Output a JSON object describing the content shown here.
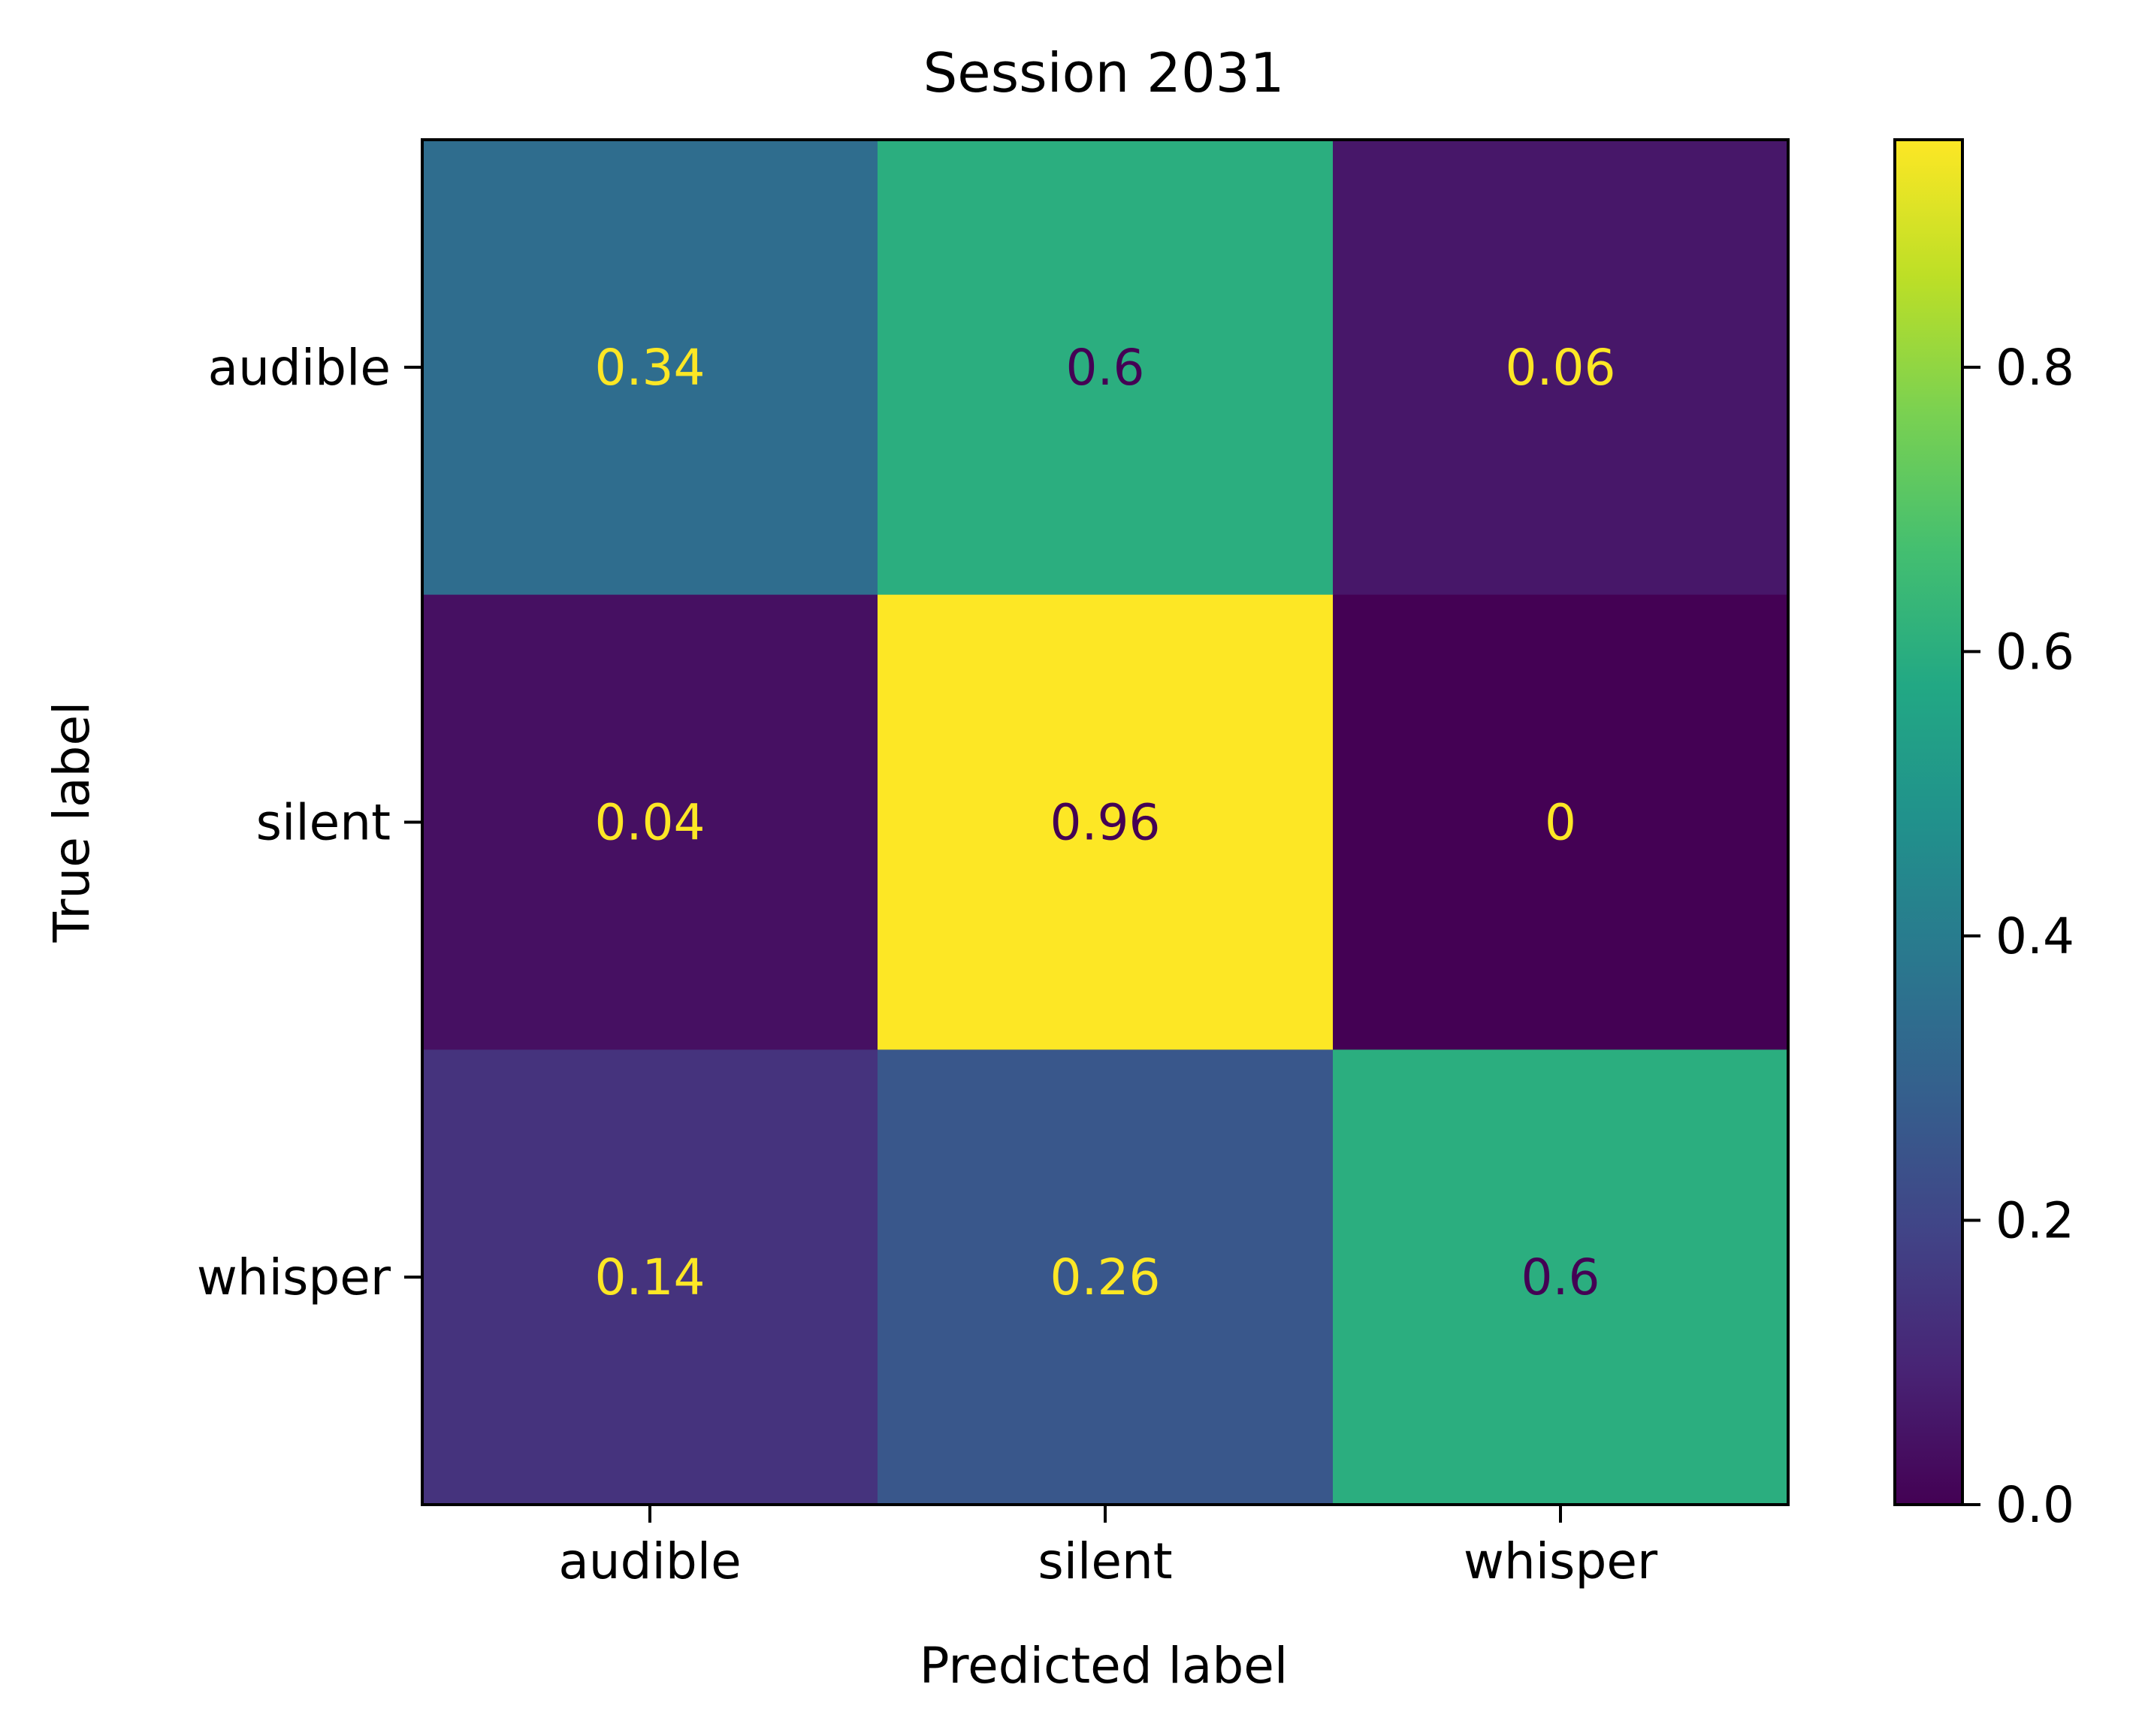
{
  "chart_data": {
    "type": "heatmap",
    "title": "Session 2031",
    "xlabel": "Predicted label",
    "ylabel": "True label",
    "x_categories": [
      "audible",
      "silent",
      "whisper"
    ],
    "y_categories": [
      "audible",
      "silent",
      "whisper"
    ],
    "values": [
      [
        0.34,
        0.6,
        0.06
      ],
      [
        0.04,
        0.96,
        0
      ],
      [
        0.14,
        0.26,
        0.6
      ]
    ],
    "cell_labels": [
      [
        "0.34",
        "0.6",
        "0.06"
      ],
      [
        "0.04",
        "0.96",
        "0"
      ],
      [
        "0.14",
        "0.26",
        "0.6"
      ]
    ],
    "colormap": "viridis",
    "colorbar": {
      "range": [
        0,
        0.96
      ],
      "ticks": [
        0,
        0.2,
        0.4,
        0.6,
        0.8
      ],
      "tick_labels": [
        "0.0",
        "0.2",
        "0.4",
        "0.6",
        "0.8"
      ]
    },
    "annotation_colors": {
      "on_dark": "#fde725",
      "on_light": "#440154"
    },
    "grid": false,
    "legend": "colorbar-right"
  }
}
